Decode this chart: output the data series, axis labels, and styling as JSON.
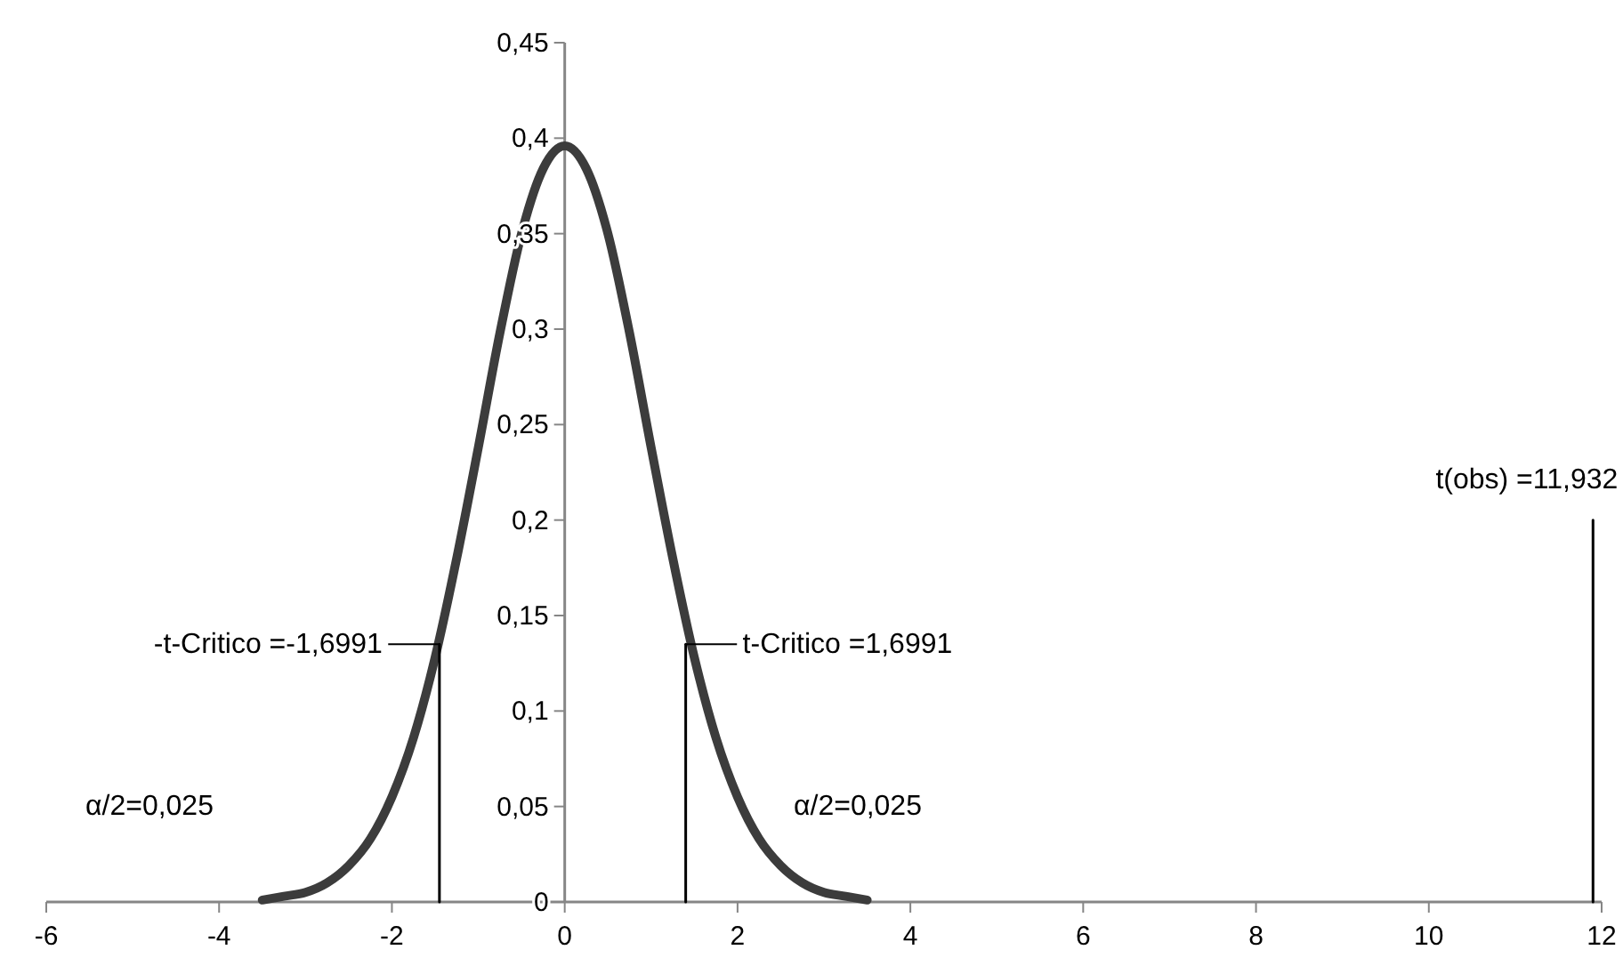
{
  "chart_data": {
    "type": "line",
    "xlim": [
      -6,
      12
    ],
    "xticks": [
      -6,
      -4,
      -2,
      0,
      2,
      4,
      6,
      8,
      10,
      12
    ],
    "ylim": [
      0,
      0.45
    ],
    "yticks": [
      0,
      {
        "value": 0.05,
        "label": "0,05"
      },
      {
        "value": 0.1,
        "label": "0,1"
      },
      {
        "value": 0.15,
        "label": "0,15"
      },
      {
        "value": 0.2,
        "label": "0,2"
      },
      {
        "value": 0.25,
        "label": "0,25"
      },
      {
        "value": 0.3,
        "label": "0,3"
      },
      {
        "value": 0.35,
        "label": "0,35"
      },
      {
        "value": 0.4,
        "label": "0,4"
      },
      {
        "value": 0.45,
        "label": "0,45"
      }
    ],
    "grid": false,
    "marker": "none",
    "line_style": "solid",
    "series": [
      {
        "color": "#3c3c3c",
        "x": [
          -3.5,
          -3.25,
          -3,
          -2.75,
          -2.5,
          -2.25,
          -2,
          -1.75,
          -1.5,
          -1.25,
          -1,
          -0.75,
          -0.5,
          -0.25,
          0,
          0.25,
          0.5,
          0.75,
          1,
          1.25,
          1.5,
          1.75,
          2,
          2.25,
          2.5,
          2.75,
          3,
          3.25,
          3.5
        ],
        "values": [
          0.001,
          0.003,
          0.005,
          0.01,
          0.019,
          0.033,
          0.055,
          0.086,
          0.128,
          0.18,
          0.238,
          0.298,
          0.35,
          0.384,
          0.396,
          0.384,
          0.35,
          0.298,
          0.238,
          0.18,
          0.128,
          0.086,
          0.055,
          0.033,
          0.019,
          0.01,
          0.005,
          0.003,
          0.001
        ]
      },
      {
        "color": "#000000",
        "x": [
          -1.45,
          -1.45
        ],
        "values": [
          0,
          0.135
        ]
      },
      {
        "color": "#000000",
        "x": [
          1.4,
          1.4
        ],
        "values": [
          0,
          0.135
        ]
      },
      {
        "color": "#000000",
        "x": [
          11.9,
          11.9
        ],
        "values": [
          0,
          0.2
        ]
      }
    ],
    "annotations": [
      {
        "text": "-t-Critico =-1,6991",
        "x": -1.45,
        "y": 0.135
      },
      {
        "text": "t-Critico =1,6991",
        "x": 1.4,
        "y": 0.135
      },
      "α/2=0,025",
      "α/2=0,025",
      {
        "text": "t(obs) =11,932",
        "x": 11.9,
        "y": 0.2
      }
    ]
  }
}
